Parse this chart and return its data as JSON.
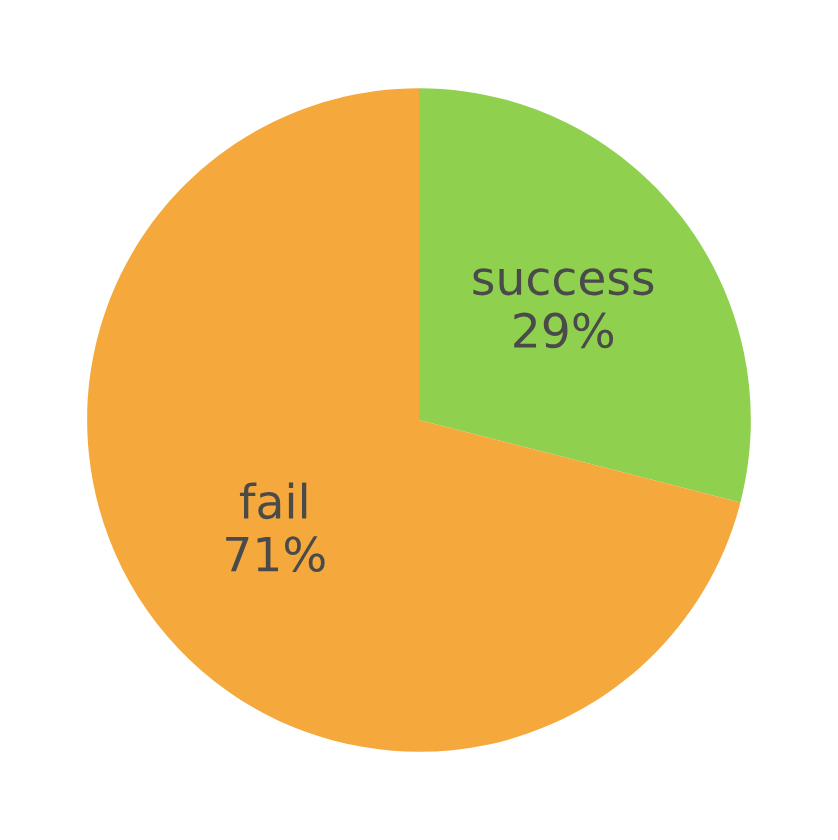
{
  "chart_data": {
    "type": "pie",
    "categories": [
      "success",
      "fail"
    ],
    "values": [
      29,
      71
    ],
    "value_labels": [
      "29%",
      "71%"
    ],
    "colors": [
      "#8fd14f",
      "#f5a83b"
    ],
    "legend": false
  }
}
